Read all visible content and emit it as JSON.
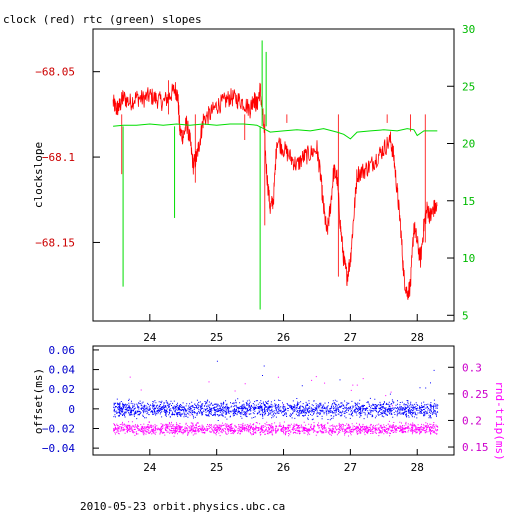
{
  "header": {
    "title": "clock (red) rtc (green) slopes"
  },
  "footer": {
    "caption": "2010-05-23 orbit.physics.ubc.ca"
  },
  "colors": {
    "clock": "#ff0000",
    "rtc": "#00dd00",
    "offset": "#0000ff",
    "rtrip": "#ff00ff",
    "axis": "#000000"
  },
  "chart_data": [
    {
      "type": "line",
      "title": "clock (red) rtc (green) slopes",
      "xlabel": "",
      "ylabel": "clockslope",
      "y2label": "",
      "xlim": [
        23.15,
        28.55
      ],
      "ylim": [
        -68.196,
        -68.025
      ],
      "y2lim": [
        4.5,
        30.0
      ],
      "x_ticks": [
        24,
        25,
        26,
        27,
        28
      ],
      "y_ticks": [
        -68.05,
        -68.1,
        -68.15
      ],
      "y_tick_labels": [
        "−68.05",
        "−68.1",
        "−68.15"
      ],
      "y2_ticks": [
        5,
        10,
        15,
        20,
        25,
        30
      ],
      "series": [
        {
          "axis": "left",
          "color": "#ff0000",
          "x": [
            23.45,
            23.5,
            23.55,
            23.6,
            23.7,
            23.8,
            23.9,
            24.0,
            24.1,
            24.2,
            24.3,
            24.38,
            24.42,
            24.45,
            24.5,
            24.55,
            24.6,
            24.65,
            24.7,
            24.75,
            24.8,
            24.9,
            25.0,
            25.1,
            25.2,
            25.3,
            25.4,
            25.5,
            25.55,
            25.6,
            25.65,
            25.7,
            25.75,
            25.8,
            25.85,
            25.9,
            26.0,
            26.1,
            26.2,
            26.3,
            26.4,
            26.5,
            26.55,
            26.6,
            26.65,
            26.7,
            26.75,
            26.8,
            26.85,
            26.9,
            26.95,
            27.0,
            27.05,
            27.1,
            27.2,
            27.3,
            27.4,
            27.5,
            27.6,
            27.65,
            27.7,
            27.75,
            27.8,
            27.85,
            27.9,
            27.95,
            28.0,
            28.05,
            28.1,
            28.15,
            28.2,
            28.25,
            28.3
          ],
          "y": [
            -68.068,
            -68.072,
            -68.07,
            -68.065,
            -68.068,
            -68.065,
            -68.066,
            -68.064,
            -68.066,
            -68.068,
            -68.064,
            -68.06,
            -68.065,
            -68.085,
            -68.088,
            -68.08,
            -68.09,
            -68.105,
            -68.1,
            -68.09,
            -68.078,
            -68.075,
            -68.07,
            -68.068,
            -68.065,
            -68.066,
            -68.068,
            -68.072,
            -68.065,
            -68.07,
            -68.06,
            -68.08,
            -68.11,
            -68.13,
            -68.125,
            -68.09,
            -68.095,
            -68.1,
            -68.105,
            -68.1,
            -68.098,
            -68.095,
            -68.11,
            -68.13,
            -68.145,
            -68.13,
            -68.108,
            -68.112,
            -68.14,
            -68.16,
            -68.17,
            -68.16,
            -68.135,
            -68.11,
            -68.108,
            -68.105,
            -68.1,
            -68.095,
            -68.09,
            -68.1,
            -68.12,
            -68.14,
            -68.17,
            -68.18,
            -68.175,
            -68.14,
            -68.15,
            -68.16,
            -68.14,
            -68.13,
            -68.135,
            -68.13,
            -68.13
          ]
        },
        {
          "axis": "right",
          "color": "#00dd00",
          "x": [
            23.45,
            23.6,
            23.8,
            24.0,
            24.2,
            24.4,
            24.6,
            24.8,
            25.0,
            25.2,
            25.4,
            25.6,
            25.7,
            25.8,
            26.0,
            26.2,
            26.4,
            26.6,
            26.8,
            26.9,
            27.0,
            27.1,
            27.3,
            27.5,
            27.7,
            27.85,
            27.95,
            28.0,
            28.1,
            28.3
          ],
          "y": [
            21.5,
            21.6,
            21.6,
            21.7,
            21.6,
            21.7,
            21.6,
            21.7,
            21.6,
            21.7,
            21.7,
            21.6,
            21.3,
            21.0,
            21.1,
            21.2,
            21.1,
            21.3,
            21.0,
            20.8,
            20.4,
            21.0,
            21.1,
            21.2,
            21.1,
            21.3,
            21.2,
            20.7,
            21.1,
            21.1
          ]
        }
      ]
    },
    {
      "type": "scatter",
      "title": "",
      "xlabel": "",
      "ylabel": "offset(ms)",
      "y2label": "rnd-trip(ms)",
      "xlim": [
        23.15,
        28.55
      ],
      "ylim": [
        -0.047,
        0.064
      ],
      "y2lim": [
        0.135,
        0.34
      ],
      "x_ticks": [
        24,
        25,
        26,
        27,
        28
      ],
      "y_ticks": [
        0.06,
        0.04,
        0.02,
        0,
        -0.02,
        -0.04
      ],
      "y_tick_labels": [
        "0.06",
        "0.04",
        "0.02",
        "0",
        "−0.02",
        "−0.04"
      ],
      "y2_ticks": [
        0.15,
        0.2,
        0.25,
        0.3
      ],
      "series": [
        {
          "axis": "left",
          "color": "#0000ff",
          "x_range": [
            23.45,
            28.3
          ],
          "center": 0.0,
          "spread": 0.012
        },
        {
          "axis": "right",
          "color": "#ff00ff",
          "x_range": [
            23.45,
            28.3
          ],
          "center": 0.185,
          "spread": 0.015
        }
      ]
    }
  ]
}
